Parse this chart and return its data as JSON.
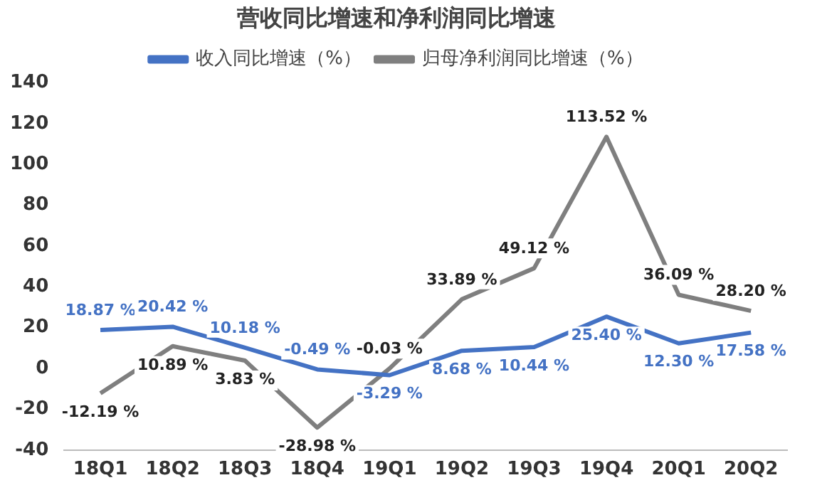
{
  "chart_data": {
    "type": "line",
    "title": "营收同比增速和净利润同比增速",
    "categories": [
      "18Q1",
      "18Q2",
      "18Q3",
      "18Q4",
      "19Q1",
      "19Q2",
      "19Q3",
      "19Q4",
      "20Q1",
      "20Q2"
    ],
    "series": [
      {
        "name": "收入同比增速（%）",
        "color": "#4472c4",
        "values": [
          18.87,
          20.42,
          10.18,
          -0.49,
          -3.29,
          8.68,
          10.44,
          25.4,
          12.3,
          17.58
        ],
        "value_labels": [
          "18.87 %",
          "20.42 %",
          "10.18 %",
          "-0.49 %",
          "-3.29 %",
          "8.68 %",
          "10.44 %",
          "25.40 %",
          "12.30 %",
          "17.58 %"
        ]
      },
      {
        "name": "归母净利润同比增速（%）",
        "color": "#7f7f7f",
        "values": [
          -12.19,
          10.89,
          3.83,
          -28.98,
          -0.03,
          33.89,
          49.12,
          113.52,
          36.09,
          28.2
        ],
        "value_labels": [
          "-12.19 %",
          "10.89 %",
          "3.83 %",
          "-28.98 %",
          "-0.03 %",
          "33.89 %",
          "49.12 %",
          "113.52 %",
          "36.09 %",
          "28.20 %"
        ]
      }
    ],
    "ylim": [
      -40,
      140
    ],
    "yticks": [
      -40,
      -20,
      0,
      20,
      40,
      60,
      80,
      100,
      120,
      140
    ],
    "grid": false,
    "legend": "top",
    "marker": "none",
    "line_style": "solid"
  }
}
